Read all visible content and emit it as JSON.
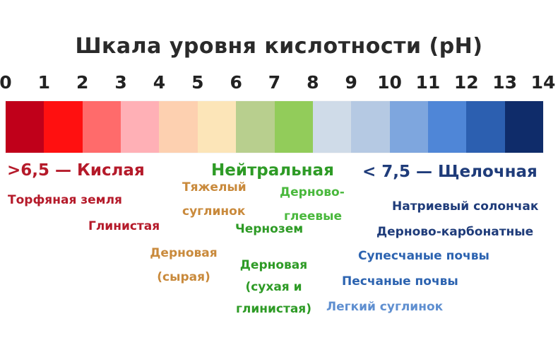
{
  "title": "Шкала  уровня кислотности (pH)",
  "scale": {
    "ticks": [
      "0",
      "1",
      "2",
      "3",
      "4",
      "5",
      "6",
      "7",
      "8",
      "9",
      "10",
      "11",
      "12",
      "13",
      "14"
    ],
    "colors": [
      "#c0001a",
      "#ff1010",
      "#ff6b6b",
      "#ffb0b6",
      "#fdd0b0",
      "#fce5b8",
      "#b8cf8e",
      "#92cc5a",
      "#cfdbe8",
      "#b5c9e3",
      "#7ea6de",
      "#4f86d7",
      "#2c5fb0",
      "#0f2c6a"
    ]
  },
  "headings": {
    "acidic": ">6,5 — Кислая",
    "neutral": "Нейтральная",
    "alkaline": "< 7,5 — Щелочная"
  },
  "soils": {
    "peat": "Торфяная земля",
    "clayey": "Глинистая",
    "heavy_loam_1": "Тяжелый",
    "heavy_loam_2": "суглинок",
    "sod_wet_1": "Дерновая",
    "sod_wet_2": "(сырая)",
    "sod_gley_1": "Дерново-",
    "sod_gley_2": "глеевые",
    "chernozem": "Чернозем",
    "sod_dry_1": "Дерновая",
    "sod_dry_2": "(сухая и",
    "sod_dry_3": "глинистая)",
    "sodium_solonchak": "Натриевый солончак",
    "sod_carbonate": "Дерново-карбонатные",
    "sandy_loam": "Супесчаные почвы",
    "sandy": "Песчаные почвы",
    "light_loam": "Легкий суглинок"
  }
}
